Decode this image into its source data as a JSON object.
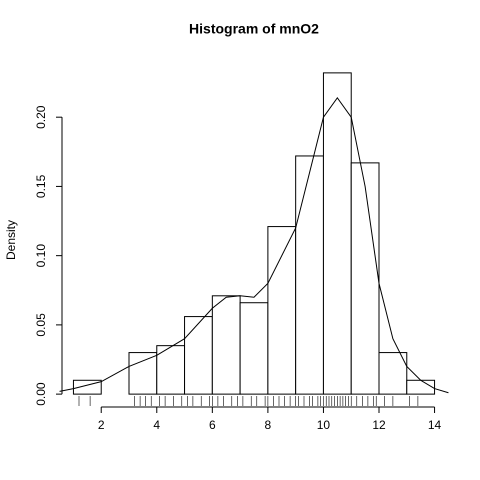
{
  "chart_data": {
    "type": "histogram",
    "title": "Histogram of  mnO2",
    "ylabel": "Density",
    "bins": [
      1,
      2,
      3,
      4,
      5,
      6,
      7,
      8,
      9,
      10,
      11,
      12,
      13,
      14
    ],
    "values": [
      0.01,
      0,
      0.03,
      0.035,
      0.056,
      0.071,
      0.066,
      0.121,
      0.172,
      0.232,
      0.167,
      0.03,
      0.01
    ],
    "color": "#ffffff",
    "xlim": [
      0.48,
      14.52
    ],
    "xticks": [
      2,
      4,
      6,
      8,
      10,
      12,
      14
    ],
    "ylim": [
      -0.0093,
      0.2413
    ],
    "yticks": [
      {
        "value": 0,
        "label": "0.00"
      },
      0.05,
      {
        "value": 0.1,
        "label": "0.10"
      },
      0.15,
      {
        "value": 0.2,
        "label": "0.20"
      }
    ],
    "density": {
      "x": [
        0.5,
        1,
        2,
        3,
        4,
        5,
        6,
        6.5,
        7,
        7.5,
        8,
        9,
        9.5,
        10,
        10.5,
        11,
        11.5,
        12,
        12.5,
        13,
        13.5,
        14,
        14.5
      ],
      "values": [
        0.002,
        0.004,
        0.009,
        0.02,
        0.028,
        0.04,
        0.062,
        0.07,
        0.071,
        0.07,
        0.08,
        0.12,
        0.16,
        0.2,
        0.214,
        0.2,
        0.15,
        0.08,
        0.04,
        0.02,
        0.01,
        0.004,
        0.001
      ]
    },
    "rug": [
      1.2,
      1.6,
      3.2,
      3.4,
      3.6,
      3.8,
      4.1,
      4.3,
      4.6,
      4.9,
      5.1,
      5.3,
      5.6,
      5.9,
      6.0,
      6.2,
      6.4,
      6.7,
      6.9,
      7.1,
      7.4,
      7.6,
      7.9,
      8.0,
      8.2,
      8.4,
      8.6,
      8.8,
      9.0,
      9.1,
      9.3,
      9.5,
      9.6,
      9.8,
      9.9,
      10.0,
      10.1,
      10.2,
      10.3,
      10.4,
      10.5,
      10.6,
      10.7,
      10.8,
      10.9,
      11.0,
      11.2,
      11.4,
      11.6,
      11.8,
      11.9,
      12.2,
      12.5,
      13.1,
      13.4
    ]
  }
}
